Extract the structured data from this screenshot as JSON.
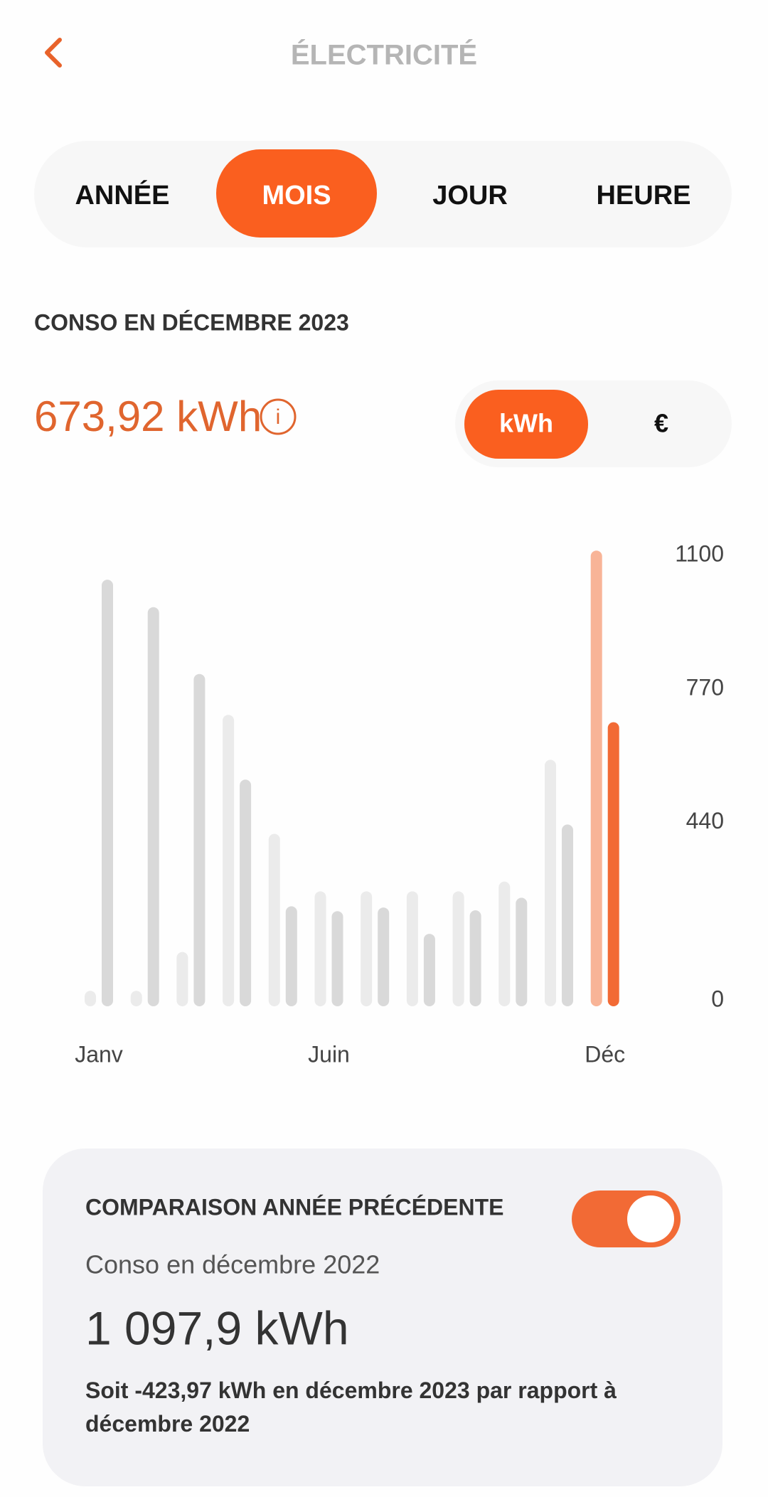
{
  "header": {
    "title": "ÉLECTRICITÉ"
  },
  "tabs": [
    "ANNÉE",
    "MOIS",
    "JOUR",
    "HEURE"
  ],
  "active_tab": 1,
  "consumption": {
    "title": "CONSO EN DÉCEMBRE 2023",
    "value": "673,92 kWh",
    "units": [
      "kWh",
      "€"
    ],
    "active_unit": 0
  },
  "chart_data": {
    "type": "bar",
    "categories": [
      "Janv",
      null,
      null,
      null,
      null,
      "Juin",
      null,
      null,
      null,
      null,
      null,
      "Déc"
    ],
    "series": [
      {
        "color": "#ebebeb",
        "highlight_color": "#f8b497",
        "values": [
          10,
          10,
          106,
          692,
          398,
          256,
          256,
          256,
          256,
          280,
          581,
          1097.9
        ]
      },
      {
        "color": "#d9d9d9",
        "highlight_color": "#f26a35",
        "values": [
          1026,
          958,
          793,
          532,
          219,
          207,
          216,
          151,
          209,
          240,
          421,
          673.92
        ]
      }
    ],
    "highlight_index": 11,
    "ylim": [
      0,
      1100
    ],
    "yticks": [
      0,
      440,
      770,
      1100
    ],
    "grid": false
  },
  "comparison": {
    "title": "COMPARAISON ANNÉE PRÉCÉDENTE",
    "enabled": true,
    "label": "Conso en décembre 2022",
    "value": "1 097,9 kWh",
    "note": "Soit -423,97 kWh en décembre 2023 par rapport à décembre 2022"
  }
}
